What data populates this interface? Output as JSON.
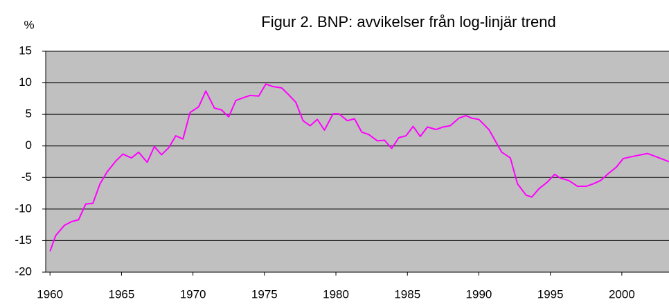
{
  "chart_data": {
    "type": "line",
    "title": "Figur 2. BNP: avvikelser från log-linjär trend",
    "y_axis_label": "%",
    "x": [
      1960.0,
      1960.4,
      1961.0,
      1961.5,
      1962.0,
      1962.5,
      1963.0,
      1963.5,
      1964.0,
      1964.6,
      1965.1,
      1965.7,
      1966.2,
      1966.8,
      1967.3,
      1967.8,
      1968.3,
      1968.8,
      1969.3,
      1969.8,
      1970.4,
      1970.9,
      1971.5,
      1972.0,
      1972.5,
      1973.0,
      1973.6,
      1974.0,
      1974.6,
      1975.1,
      1975.6,
      1976.2,
      1976.7,
      1977.2,
      1977.7,
      1978.2,
      1978.7,
      1979.2,
      1979.8,
      1980.2,
      1980.8,
      1981.3,
      1981.8,
      1982.3,
      1982.9,
      1983.4,
      1983.9,
      1984.4,
      1984.9,
      1985.4,
      1985.9,
      1986.4,
      1987.0,
      1987.5,
      1988.0,
      1988.6,
      1989.1,
      1989.5,
      1990.0,
      1990.7,
      1991.1,
      1991.6,
      1992.2,
      1992.7,
      1993.3,
      1993.7,
      1994.2,
      1994.8,
      1995.3,
      1995.7,
      1996.3,
      1996.9,
      1997.5,
      1998.0,
      1998.5,
      1999.1,
      1999.6,
      2000.1,
      2000.9,
      2001.8,
      2002.5,
      2003.3
    ],
    "values": [
      -16.7,
      -14.2,
      -12.6,
      -12.0,
      -11.7,
      -9.2,
      -9.1,
      -6.0,
      -4.1,
      -2.4,
      -1.3,
      -1.9,
      -1.0,
      -2.6,
      -0.1,
      -1.4,
      -0.3,
      1.6,
      1.1,
      5.3,
      6.2,
      8.7,
      6.0,
      5.7,
      4.6,
      7.2,
      7.7,
      8.0,
      7.9,
      9.8,
      9.4,
      9.2,
      8.1,
      6.9,
      4.0,
      3.2,
      4.2,
      2.5,
      5.1,
      5.1,
      4.0,
      4.3,
      2.2,
      1.8,
      0.8,
      0.9,
      -0.4,
      1.3,
      1.6,
      3.1,
      1.5,
      3.0,
      2.6,
      3.0,
      3.2,
      4.4,
      4.8,
      4.4,
      4.2,
      2.6,
      1.0,
      -1.0,
      -1.9,
      -6.0,
      -7.8,
      -8.1,
      -6.8,
      -5.7,
      -4.5,
      -5.1,
      -5.5,
      -6.4,
      -6.4,
      -6.0,
      -5.5,
      -4.3,
      -3.4,
      -2.0,
      -1.6,
      -1.2,
      -1.8,
      -2.5
    ],
    "color": "#ff00ff",
    "xlim": [
      1959.7,
      2003.3
    ],
    "xticks": [
      1960,
      1965,
      1970,
      1975,
      1980,
      1985,
      1990,
      1995,
      2000
    ],
    "ylim": [
      -20,
      15
    ],
    "yticks": [
      -20,
      -15,
      -10,
      -5,
      0,
      5,
      10,
      15
    ],
    "grid": true,
    "plot_background": "#c0c0c0"
  }
}
